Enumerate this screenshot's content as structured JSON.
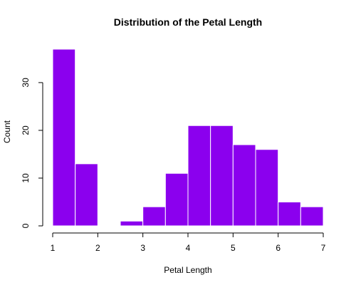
{
  "chart_data": {
    "type": "bar",
    "title": "Distribution of the Petal Length",
    "xlabel": "Petal Length",
    "ylabel": "Count",
    "bin_edges": [
      1,
      1.5,
      2,
      2.5,
      3,
      3.5,
      4,
      4.5,
      5,
      5.5,
      6,
      6.5,
      7
    ],
    "values": [
      37,
      13,
      0,
      1,
      4,
      11,
      21,
      21,
      17,
      16,
      5,
      4
    ],
    "x_ticks": [
      "1",
      "2",
      "3",
      "4",
      "5",
      "6",
      "7"
    ],
    "y_ticks": [
      "0",
      "10",
      "20",
      "30"
    ],
    "xlim": [
      1,
      7
    ],
    "ylim": [
      0,
      37
    ],
    "grid": false,
    "bar_color": "#8B00EE",
    "bar_edge_color": "#FFFFFF"
  }
}
